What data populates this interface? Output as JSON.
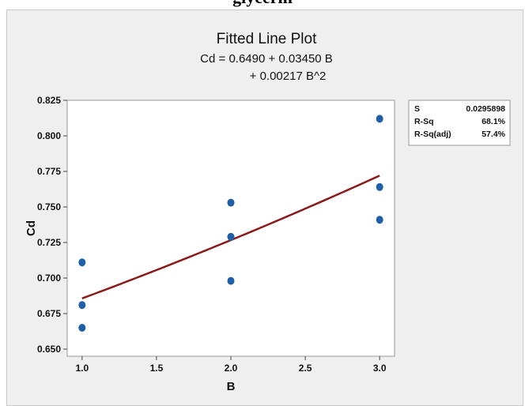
{
  "caption": "glycerin",
  "chart_data": {
    "type": "scatter",
    "title": "Fitted Line Plot",
    "equation_line1": "Cd = 0.6490 + 0.03450 B",
    "equation_line2": "+ 0.00217 B^2",
    "xlabel": "B",
    "ylabel": "Cd",
    "xlim": [
      0.9,
      3.1
    ],
    "ylim": [
      0.645,
      0.825
    ],
    "x_ticks": [
      "1.0",
      "1.5",
      "2.0",
      "2.5",
      "3.0"
    ],
    "y_ticks": [
      "0.650",
      "0.675",
      "0.700",
      "0.725",
      "0.750",
      "0.775",
      "0.800",
      "0.825"
    ],
    "points": [
      {
        "x": 1.0,
        "y": 0.711
      },
      {
        "x": 1.0,
        "y": 0.681
      },
      {
        "x": 1.0,
        "y": 0.665
      },
      {
        "x": 2.0,
        "y": 0.753
      },
      {
        "x": 2.0,
        "y": 0.729
      },
      {
        "x": 2.0,
        "y": 0.698
      },
      {
        "x": 3.0,
        "y": 0.812
      },
      {
        "x": 3.0,
        "y": 0.764
      },
      {
        "x": 3.0,
        "y": 0.741
      }
    ],
    "fit": {
      "intercept": 0.649,
      "b1": 0.0345,
      "b2": 0.00217,
      "x_range": [
        1.0,
        3.0
      ]
    },
    "stats": [
      {
        "label": "S",
        "value": "0.0295898"
      },
      {
        "label": "R-Sq",
        "value": "68.1%"
      },
      {
        "label": "R-Sq(adj)",
        "value": "57.4%"
      }
    ],
    "colors": {
      "points": "#1f5fa8",
      "fit_line": "#8b1a1a",
      "background": "#efefef",
      "plot_area": "#ffffff"
    }
  }
}
